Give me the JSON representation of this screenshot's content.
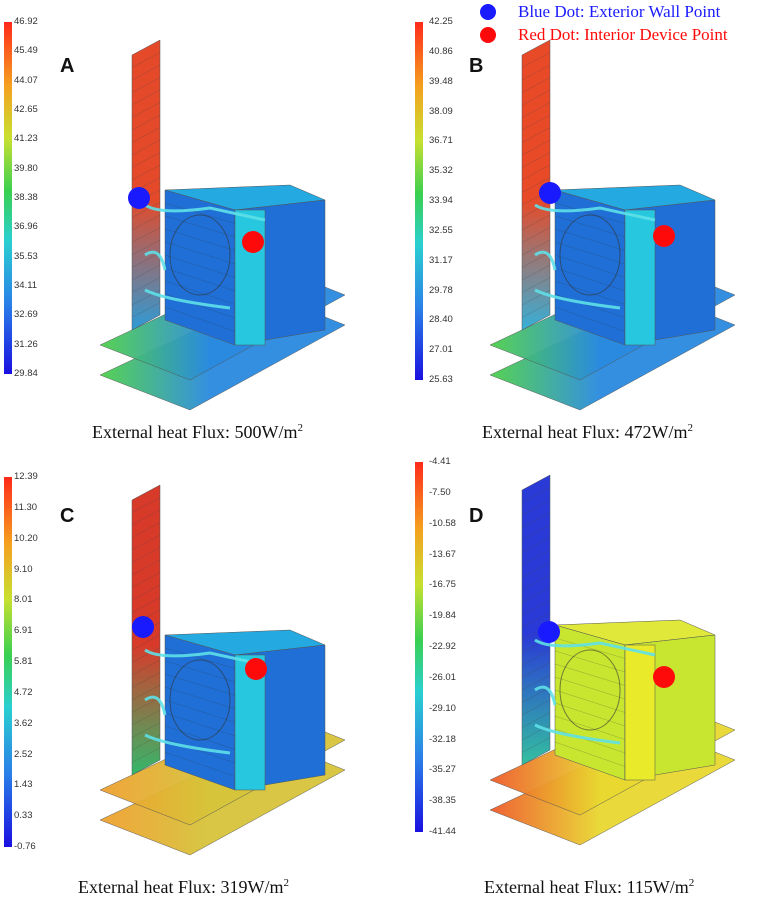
{
  "legend": {
    "blue_label": "Blue Dot: Exterior Wall Point",
    "red_label": "Red Dot: Interior Device Point",
    "blue_color": "#1a1aff",
    "red_color": "#ff0a0a"
  },
  "panels": [
    {
      "letter": "A",
      "ticks": [
        "46.92",
        "45.49",
        "44.07",
        "42.65",
        "41.23",
        "39.80",
        "38.38",
        "36.96",
        "35.53",
        "34.11",
        "32.69",
        "31.26",
        "29.84"
      ],
      "caption_prefix": "External heat Flux: 500W/m",
      "caption_sup": "2",
      "wall_top": "#e44a2a",
      "wall_bottom": "#2e9bd6",
      "box": "#1f6fd6",
      "box_front": "#27c7e0",
      "box_top": "#24a9e0",
      "floor": "#2a8ae0",
      "floor_hot": "#4fd04a"
    },
    {
      "letter": "B",
      "ticks": [
        "42.25",
        "40.86",
        "39.48",
        "38.09",
        "36.71",
        "35.32",
        "33.94",
        "32.55",
        "31.17",
        "29.78",
        "28.40",
        "27.01",
        "25.63"
      ],
      "caption_prefix": "External heat Flux: 472W/m",
      "caption_sup": "2",
      "wall_top": "#e84a28",
      "wall_bottom": "#36b0d8",
      "box": "#1f6fd6",
      "box_front": "#27c7e0",
      "box_top": "#24a9e0",
      "floor": "#2a8ae0",
      "floor_hot": "#4fd04a"
    },
    {
      "letter": "C",
      "ticks": [
        "12.39",
        "11.30",
        "10.20",
        "9.10",
        "8.01",
        "6.91",
        "5.81",
        "4.72",
        "3.62",
        "2.52",
        "1.43",
        "0.33",
        "-0.76"
      ],
      "caption_prefix": "External heat Flux: 319W/m",
      "caption_sup": "2",
      "wall_top": "#d83a2a",
      "wall_bottom": "#34b86a",
      "box": "#1f6fd6",
      "box_front": "#27c7e0",
      "box_top": "#24a9e0",
      "floor": "#d6c43a",
      "floor_hot": "#f0a030"
    },
    {
      "letter": "D",
      "ticks": [
        "-4.41",
        "-7.50",
        "-10.58",
        "-13.67",
        "-16.75",
        "-19.84",
        "-22.92",
        "-26.01",
        "-29.10",
        "-32.18",
        "-35.27",
        "-38.35",
        "-41.44"
      ],
      "caption_prefix": "External heat Flux: 115W/m",
      "caption_sup": "2",
      "wall_top": "#2a3ad6",
      "wall_bottom": "#34c0a0",
      "box": "#c8e630",
      "box_front": "#e8ea2a",
      "box_top": "#e0e83a",
      "floor": "#e8d830",
      "floor_hot": "#f05a2a"
    }
  ]
}
